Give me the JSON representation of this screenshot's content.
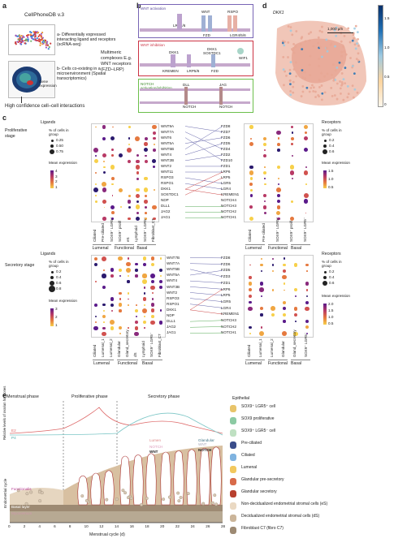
{
  "panels": {
    "a": "a",
    "b": "b",
    "c": "c",
    "d": "d",
    "e": "e"
  },
  "panel_a": {
    "title": "CellPhoneDB v.3",
    "step_a": "a- Differentially expressed interacting ligand and receptors (scRNA-seq)",
    "step_b": "b- Cells co-existing in a microenvironment (Spatial transcriptomics)",
    "result": "High confidence cell–cell interactions",
    "multimeric": "Multimeric complexes E.g. WNT receptors (FZD–LRP)",
    "gene_expression": "Gene expression"
  },
  "panel_b": {
    "wnt_activation": "WNT activation",
    "wnt_inhibition": "WNT inhibition",
    "notch": "NOTCH activation/inhibition",
    "labels": [
      "WNT",
      "RSPO",
      "LRP5/6",
      "FZD",
      "LGR4/5/6",
      "DKK1",
      "DKK1",
      "SOSTDC1",
      "WIF1",
      "KREMEN",
      "LRP5/6",
      "FZD",
      "DLL",
      "JAG",
      "NOTCH",
      "NOTCH"
    ]
  },
  "panel_d": {
    "gene": "DKK1",
    "scale": "1,000 µm",
    "colorbar_ticks": [
      "1.5",
      "1.0",
      "0.5",
      "0"
    ]
  },
  "panel_c": {
    "top": {
      "stage": "Proliferative stage",
      "ligands_title": "Ligands",
      "receptors_title": "Receptors",
      "pct_title": "% of cells in group",
      "pct_values": [
        "0.25",
        "0.50",
        "0.75"
      ],
      "pct_values_r": [
        "0.2",
        "0.4",
        "0.6"
      ],
      "mean_title": "Mean expression",
      "mean_ticks": [
        "4",
        "3",
        "2",
        "1"
      ],
      "mean_ticks_r": [
        "1.5",
        "1.0",
        "0.5"
      ],
      "ligands": [
        "WNT9A",
        "WNT7A",
        "WNT6",
        "WNT5A",
        "WNT5B",
        "WNT4",
        "WNT2B",
        "WNT2",
        "WNT11",
        "RSPO3",
        "RSPO1",
        "DKK1",
        "SOSTDC1",
        "NDP",
        "DLL1",
        "JAG2",
        "JAG1"
      ],
      "receptors": [
        "FZD8",
        "FZD7",
        "FZD6",
        "FZD5",
        "FZD4",
        "FZD2",
        "FZD10",
        "FZD1",
        "LRP6",
        "LRP5",
        "LGR5",
        "LGR4",
        "KREMEN1",
        "NOTCH4",
        "NOTCH3",
        "NOTCH2",
        "NOTCH1"
      ],
      "lig_cols": [
        "Ciliated",
        "Pre-ciliated",
        "SOX9⁺ LGR5⁺",
        "SOX9⁺ prolif",
        "eS",
        "Lymphoid",
        "SOX9⁺ LGR5⁻",
        "Fibroblast_C7"
      ],
      "rec_cols": [
        "Ciliated",
        "Pre-ciliated",
        "SOX9⁺ LGR5⁺",
        "SOX9⁺ prolif",
        "SOX9⁺ LGR5⁻"
      ],
      "lig_groups": [
        "Lumenal",
        "Functional",
        "Basal"
      ],
      "rec_groups": [
        "Lumenal",
        "Functional",
        "Basal"
      ]
    },
    "bottom": {
      "stage": "Secretory stage",
      "ligands_title": "Ligands",
      "receptors_title": "Receptors",
      "pct_title": "% of cells in group",
      "pct_values": [
        "0.2",
        "0.4",
        "0.6",
        "0.8"
      ],
      "pct_values_r": [
        "0.2",
        "0.4",
        "0.6"
      ],
      "mean_title": "Mean expression",
      "mean_ticks": [
        "3",
        "2",
        "1"
      ],
      "mean_ticks_r": [
        "2.0",
        "1.5",
        "1.0",
        "0.5"
      ],
      "ligands": [
        "WNT7B",
        "WNT7A",
        "WNT5B",
        "WNT5A",
        "WNT4",
        "WNT3B",
        "WNT2",
        "RSPO3",
        "RSPO1",
        "DKK1",
        "NDP",
        "DLL1",
        "JAG2",
        "JAG1"
      ],
      "receptors": [
        "FZD8",
        "FZD6",
        "FZD5",
        "FZD3",
        "FZD1",
        "LRP6",
        "LRP5",
        "LGR5",
        "LGR4",
        "KREMEN1",
        "NOTCH3",
        "NOTCH2",
        "NOTCH1"
      ],
      "lig_cols": [
        "Ciliated",
        "Lumenal_1",
        "Lumenal_2",
        "Glandular",
        "Gland_secretory",
        "dS",
        "Lymphoid",
        "SOX9⁺ LGR5⁻",
        "Fibroblast_C7"
      ],
      "rec_cols": [
        "Ciliated",
        "Lumenal_1",
        "Lumenal_2",
        "Glandular",
        "Gland_secretory",
        "SOX9⁺ LGR5⁻"
      ],
      "lig_groups": [
        "Lumenal",
        "Functional",
        "Basal"
      ],
      "rec_groups": [
        "Lumenal",
        "Functional",
        "Basal"
      ]
    }
  },
  "panel_e": {
    "phases": [
      "Menstrual phase",
      "Proliferative phase",
      "Secretory phase"
    ],
    "yaxis_top": "Relative levels of ovarian hormones",
    "yaxis_bottom": "Endometrial cycle",
    "e2": "E2",
    "p4": "P4",
    "functionalis": "Functionalis",
    "basalis": "Basal layer",
    "myometrium": "Myometrium",
    "lumen_label": "Lumen",
    "glandular_label": "Glandular",
    "wnt": "WNT",
    "notch": "NOTCH",
    "notch_faint": "NOTCH",
    "wnt_faint": "WNT",
    "xaxis": "Menstrual cycle (d)",
    "xticks": [
      "0",
      "2",
      "4",
      "6",
      "8",
      "10",
      "12",
      "14",
      "16",
      "18",
      "20",
      "22",
      "24",
      "26",
      "28"
    ],
    "legend_title": "Epithelial",
    "legend": [
      "SOX9⁺ LGR5⁺ cell",
      "SOX9 proliferative",
      "SOX9⁺ LGR5⁻ cell",
      "Pre-ciliated",
      "Ciliated",
      "Lumenal",
      "Glandular pre-secretory",
      "Glandular secretory",
      "Non-decidualized endometrial stromal cells (eS)",
      "Decidualized endometrial stromal cells (dS)",
      "Fibroblast C7 (fibro C7)"
    ],
    "legend_colors": [
      "#e8c46a",
      "#8ccaa3",
      "#bfe0c2",
      "#3a4d8a",
      "#7fb3e0",
      "#f2c85e",
      "#d86b4a",
      "#b8402e",
      "#ead9c3",
      "#cbb59a",
      "#9d8a73"
    ]
  }
}
